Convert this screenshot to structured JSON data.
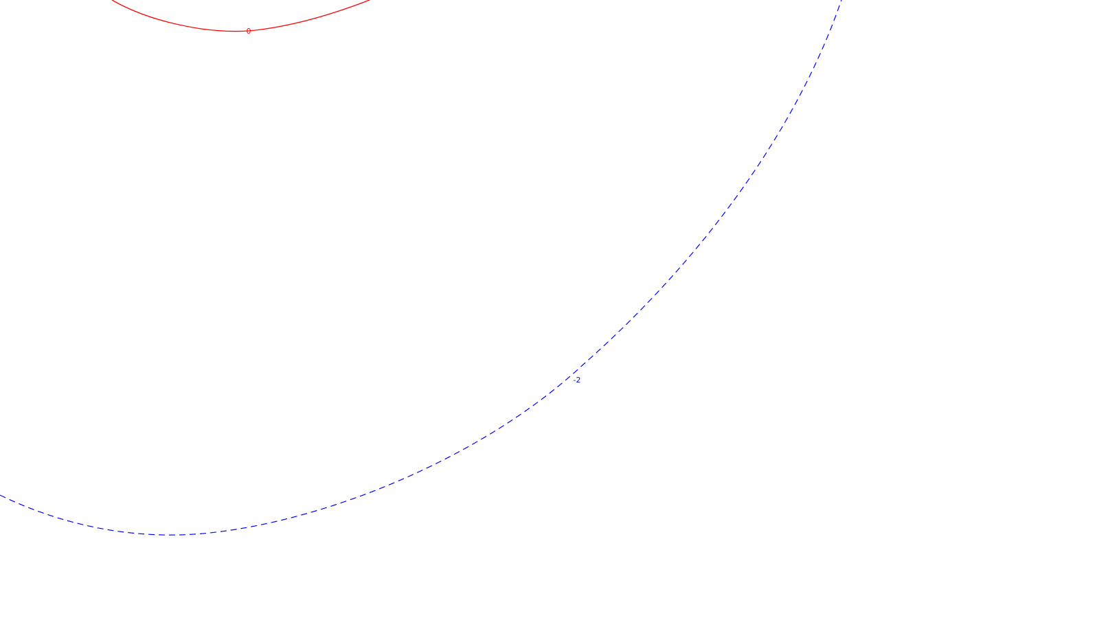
{
  "chart_data": {
    "type": "contour",
    "title": "",
    "xlabel": "",
    "ylabel": "",
    "grid": false,
    "legend": "none",
    "levels": [
      {
        "value": 0,
        "label": "0",
        "color": "#ff0000",
        "style": "solid"
      },
      {
        "value": -2,
        "label": "-2",
        "color": "#0000ff",
        "style": "dashed"
      }
    ]
  }
}
